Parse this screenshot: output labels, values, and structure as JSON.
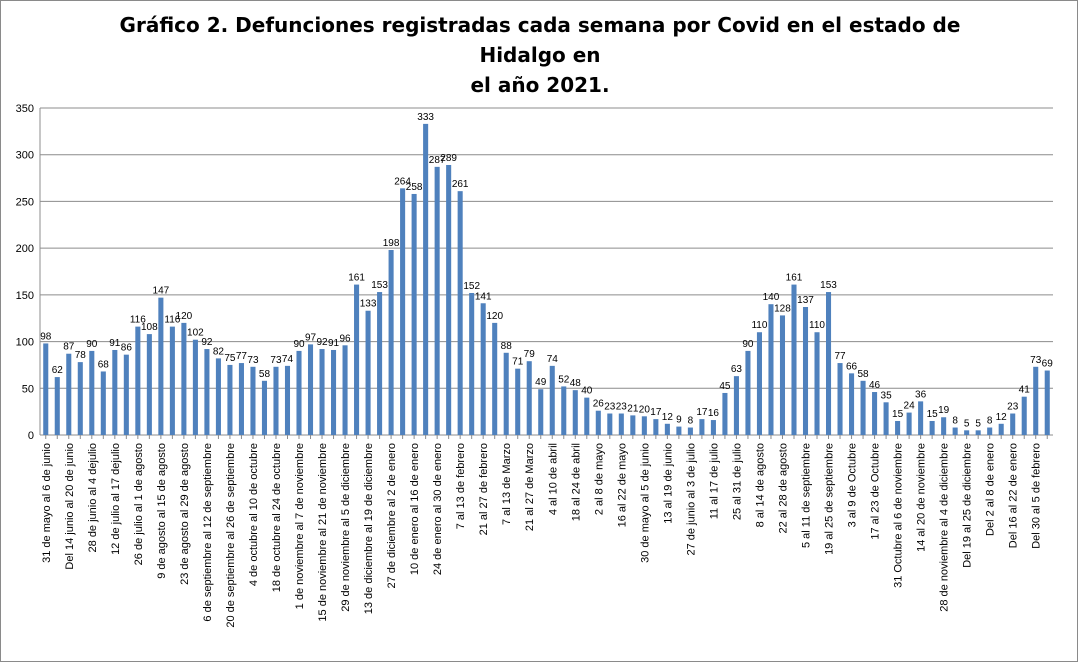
{
  "chart_data": {
    "type": "bar",
    "title_line1": "Gráfico 2. Defunciones registradas cada semana por Covid en el estado de Hidalgo en",
    "title_line2": "el año 2021.",
    "xlabel": "",
    "ylabel": "",
    "ylim": [
      0,
      350
    ],
    "yticks": [
      0,
      50,
      100,
      150,
      200,
      250,
      300,
      350
    ],
    "grid": true,
    "legend": "none",
    "bar_color": "#4F81BD",
    "categories": [
      "31 de mayo al 6 de junio",
      "",
      "Del 14 junio al 20 de junio",
      "",
      "28 de junio al 4 dejulio",
      "",
      "12 de julio al 17 dejulio",
      "",
      "26 de julio al 1 de agosto",
      "",
      "9 de agosto al 15 de agosto",
      "",
      "23 de agosto al 29 de agosto",
      "",
      "6 de septiembre al 12 de septiembre",
      "",
      "20 de septiembre al 26 de septiembre",
      "",
      "4 de octubre al 10 de octubre",
      "",
      "18 de octubre al 24 de octubre",
      "",
      "1 de noviembre al 7 de noviembre",
      "",
      "15 de noviembre al 21 de noviembre",
      "",
      "29 de noviembre al 5 de diciembre",
      "",
      "13 de diciembre al 19 de diciembre",
      "",
      "27 de diciembre al 2 de enero",
      "",
      "10 de enero al 16 de enero",
      "",
      "24 de enero al 30 de enero",
      "",
      "7 al 13 de febrero",
      "",
      "21 al 27 de febrero",
      "",
      "7 al 13 de Marzo",
      "",
      "21 al 27 de Marzo",
      "",
      "4 al 10 de abril",
      "",
      "18 al 24 de abril",
      "",
      "2 al 8 de mayo",
      "",
      "16 al 22 de mayo",
      "",
      "30 de mayo al 5 de junio",
      "",
      "13 al 19 de junio",
      "",
      "27 de junio al 3 de julio",
      "",
      "11 al 17 de julio",
      "",
      "25 al 31 de julio",
      "",
      "8 al 14 de agosto",
      "",
      "22 al 28 de agosto",
      "",
      "5 al 11 de septiembre",
      "",
      "19 al 25 de septiembre",
      "",
      "3 al 9 de Octubre",
      "",
      "17 al 23 de Octubre",
      "",
      "31 Octubre al 6 de noviembre",
      "",
      "14 al 20 de noviembre",
      "",
      "28 de noviembre al 4 de diciembre",
      "",
      "Del 19 al 25 de diciembre",
      "",
      "Del 2 al 8 de enero",
      "",
      "Del 16 al 22 de enero",
      "",
      "Del 30 al 5 de febrero",
      ""
    ],
    "values": [
      98,
      62,
      87,
      78,
      90,
      68,
      91,
      86,
      116,
      108,
      147,
      116,
      120,
      102,
      92,
      82,
      75,
      77,
      73,
      58,
      73,
      74,
      90,
      97,
      92,
      91,
      96,
      161,
      133,
      153,
      198,
      264,
      258,
      333,
      287,
      289,
      261,
      152,
      141,
      120,
      88,
      71,
      79,
      49,
      74,
      52,
      48,
      40,
      26,
      23,
      23,
      21,
      20,
      17,
      12,
      9,
      8,
      17,
      16,
      45,
      63,
      90,
      110,
      140,
      128,
      161,
      137,
      110,
      153,
      77,
      66,
      58,
      46,
      35,
      15,
      24,
      36,
      15,
      19,
      8,
      5,
      5,
      8,
      12,
      23,
      41,
      73,
      69
    ]
  }
}
